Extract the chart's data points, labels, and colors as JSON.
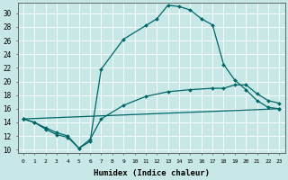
{
  "xlabel": "Humidex (Indice chaleur)",
  "xlim": [
    -0.5,
    23.5
  ],
  "ylim": [
    9.5,
    31.5
  ],
  "yticks": [
    10,
    12,
    14,
    16,
    18,
    20,
    22,
    24,
    26,
    28,
    30
  ],
  "xticks": [
    0,
    1,
    2,
    3,
    4,
    5,
    6,
    7,
    8,
    9,
    10,
    11,
    12,
    13,
    14,
    15,
    16,
    17,
    18,
    19,
    20,
    21,
    22,
    23
  ],
  "bg_color": "#c8e8e8",
  "line_color": "#006666",
  "grid_color": "#ffffff",
  "curves": [
    {
      "x": [
        0,
        1,
        2,
        3,
        4,
        5,
        6,
        7,
        9,
        11,
        12,
        13,
        14,
        15,
        16,
        17,
        18,
        19,
        20,
        21,
        22,
        23
      ],
      "y": [
        14.5,
        14.0,
        13.0,
        12.2,
        11.8,
        10.2,
        11.2,
        21.8,
        26.2,
        28.2,
        29.2,
        31.2,
        31.0,
        30.5,
        29.2,
        28.3,
        22.5,
        20.2,
        18.8,
        17.2,
        16.2,
        16.0
      ]
    },
    {
      "x": [
        0,
        1,
        2,
        3,
        4,
        5,
        6,
        7,
        9,
        11,
        13,
        15,
        17,
        18,
        19,
        20,
        21,
        22,
        23
      ],
      "y": [
        14.5,
        14.0,
        13.2,
        12.5,
        12.0,
        10.2,
        11.5,
        14.5,
        16.5,
        17.8,
        18.5,
        18.8,
        19.0,
        19.0,
        19.5,
        19.5,
        18.2,
        17.2,
        16.8
      ]
    },
    {
      "x": [
        0,
        23
      ],
      "y": [
        14.5,
        16.0
      ]
    }
  ]
}
